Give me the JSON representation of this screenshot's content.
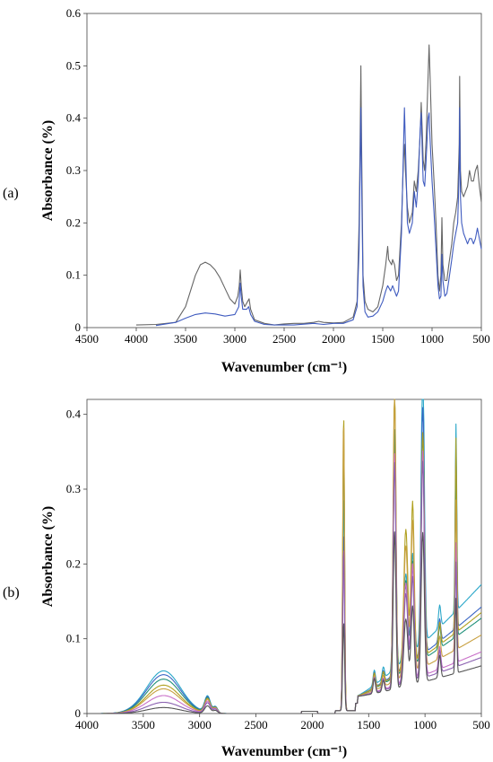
{
  "chart_data": [
    {
      "panel_label": "(a)",
      "type": "line",
      "xlabel": "Wavenumber (cm⁻¹)",
      "ylabel": "Absorbance (%)",
      "xlim": [
        4500,
        500
      ],
      "ylim": [
        0,
        0.6
      ],
      "x_ticks": [
        4500,
        4000,
        3500,
        3000,
        2500,
        2000,
        1500,
        1000,
        500
      ],
      "x_tick_labels": [
        "4500",
        "4000",
        "3500",
        "3000",
        "2500",
        "2000",
        "1500",
        "1000",
        "500"
      ],
      "y_ticks": [
        0,
        0.1,
        0.2,
        0.3,
        0.4,
        0.5,
        0.6
      ],
      "y_tick_labels": [
        "0",
        "0.1",
        "0.2",
        "0.3",
        "0.4",
        "0.5",
        "0.6"
      ],
      "grid": false,
      "series": [
        {
          "color": "#666666",
          "points": [
            [
              4000,
              0.005
            ],
            [
              3800,
              0.006
            ],
            [
              3600,
              0.01
            ],
            [
              3500,
              0.04
            ],
            [
              3450,
              0.07
            ],
            [
              3400,
              0.1
            ],
            [
              3350,
              0.12
            ],
            [
              3300,
              0.125
            ],
            [
              3250,
              0.12
            ],
            [
              3200,
              0.11
            ],
            [
              3150,
              0.095
            ],
            [
              3100,
              0.075
            ],
            [
              3050,
              0.055
            ],
            [
              3000,
              0.045
            ],
            [
              2970,
              0.06
            ],
            [
              2955,
              0.08
            ],
            [
              2945,
              0.11
            ],
            [
              2935,
              0.08
            ],
            [
              2920,
              0.05
            ],
            [
              2900,
              0.04
            ],
            [
              2870,
              0.05
            ],
            [
              2855,
              0.055
            ],
            [
              2840,
              0.035
            ],
            [
              2800,
              0.015
            ],
            [
              2700,
              0.008
            ],
            [
              2600,
              0.005
            ],
            [
              2500,
              0.007
            ],
            [
              2400,
              0.008
            ],
            [
              2300,
              0.008
            ],
            [
              2200,
              0.01
            ],
            [
              2150,
              0.012
            ],
            [
              2100,
              0.01
            ],
            [
              2000,
              0.009
            ],
            [
              1900,
              0.01
            ],
            [
              1800,
              0.02
            ],
            [
              1760,
              0.05
            ],
            [
              1740,
              0.2
            ],
            [
              1730,
              0.35
            ],
            [
              1722,
              0.5
            ],
            [
              1715,
              0.35
            ],
            [
              1700,
              0.1
            ],
            [
              1680,
              0.05
            ],
            [
              1650,
              0.035
            ],
            [
              1600,
              0.03
            ],
            [
              1550,
              0.04
            ],
            [
              1500,
              0.08
            ],
            [
              1470,
              0.12
            ],
            [
              1450,
              0.155
            ],
            [
              1440,
              0.13
            ],
            [
              1410,
              0.12
            ],
            [
              1400,
              0.13
            ],
            [
              1380,
              0.12
            ],
            [
              1360,
              0.09
            ],
            [
              1340,
              0.1
            ],
            [
              1310,
              0.2
            ],
            [
              1290,
              0.32
            ],
            [
              1280,
              0.35
            ],
            [
              1270,
              0.3
            ],
            [
              1250,
              0.23
            ],
            [
              1230,
              0.2
            ],
            [
              1200,
              0.22
            ],
            [
              1180,
              0.28
            ],
            [
              1160,
              0.26
            ],
            [
              1140,
              0.3
            ],
            [
              1120,
              0.37
            ],
            [
              1110,
              0.43
            ],
            [
              1100,
              0.38
            ],
            [
              1090,
              0.32
            ],
            [
              1075,
              0.3
            ],
            [
              1060,
              0.36
            ],
            [
              1040,
              0.48
            ],
            [
              1030,
              0.54
            ],
            [
              1020,
              0.48
            ],
            [
              1000,
              0.35
            ],
            [
              980,
              0.28
            ],
            [
              960,
              0.2
            ],
            [
              940,
              0.1
            ],
            [
              925,
              0.07
            ],
            [
              910,
              0.1
            ],
            [
              900,
              0.21
            ],
            [
              890,
              0.12
            ],
            [
              870,
              0.09
            ],
            [
              850,
              0.09
            ],
            [
              830,
              0.12
            ],
            [
              800,
              0.16
            ],
            [
              780,
              0.2
            ],
            [
              760,
              0.22
            ],
            [
              740,
              0.25
            ],
            [
              725,
              0.35
            ],
            [
              720,
              0.48
            ],
            [
              712,
              0.3
            ],
            [
              700,
              0.26
            ],
            [
              680,
              0.25
            ],
            [
              660,
              0.26
            ],
            [
              640,
              0.27
            ],
            [
              620,
              0.3
            ],
            [
              600,
              0.28
            ],
            [
              580,
              0.28
            ],
            [
              560,
              0.3
            ],
            [
              540,
              0.31
            ],
            [
              520,
              0.27
            ],
            [
              500,
              0.24
            ]
          ]
        },
        {
          "color": "#3f5bbf",
          "points": [
            [
              3800,
              0.004
            ],
            [
              3600,
              0.01
            ],
            [
              3500,
              0.018
            ],
            [
              3400,
              0.025
            ],
            [
              3300,
              0.028
            ],
            [
              3200,
              0.026
            ],
            [
              3100,
              0.022
            ],
            [
              3000,
              0.025
            ],
            [
              2960,
              0.04
            ],
            [
              2945,
              0.085
            ],
            [
              2935,
              0.06
            ],
            [
              2920,
              0.035
            ],
            [
              2880,
              0.035
            ],
            [
              2860,
              0.04
            ],
            [
              2840,
              0.025
            ],
            [
              2800,
              0.012
            ],
            [
              2700,
              0.006
            ],
            [
              2600,
              0.005
            ],
            [
              2500,
              0.005
            ],
            [
              2400,
              0.005
            ],
            [
              2200,
              0.008
            ],
            [
              2100,
              0.006
            ],
            [
              2000,
              0.008
            ],
            [
              1900,
              0.008
            ],
            [
              1800,
              0.015
            ],
            [
              1760,
              0.04
            ],
            [
              1740,
              0.15
            ],
            [
              1730,
              0.3
            ],
            [
              1722,
              0.42
            ],
            [
              1715,
              0.28
            ],
            [
              1700,
              0.08
            ],
            [
              1680,
              0.03
            ],
            [
              1650,
              0.02
            ],
            [
              1600,
              0.022
            ],
            [
              1550,
              0.03
            ],
            [
              1500,
              0.05
            ],
            [
              1470,
              0.07
            ],
            [
              1450,
              0.08
            ],
            [
              1420,
              0.07
            ],
            [
              1400,
              0.08
            ],
            [
              1380,
              0.07
            ],
            [
              1360,
              0.06
            ],
            [
              1340,
              0.07
            ],
            [
              1310,
              0.18
            ],
            [
              1290,
              0.34
            ],
            [
              1280,
              0.42
            ],
            [
              1270,
              0.35
            ],
            [
              1250,
              0.2
            ],
            [
              1230,
              0.18
            ],
            [
              1200,
              0.2
            ],
            [
              1180,
              0.26
            ],
            [
              1160,
              0.23
            ],
            [
              1140,
              0.28
            ],
            [
              1120,
              0.38
            ],
            [
              1110,
              0.41
            ],
            [
              1100,
              0.34
            ],
            [
              1090,
              0.28
            ],
            [
              1075,
              0.27
            ],
            [
              1060,
              0.32
            ],
            [
              1040,
              0.4
            ],
            [
              1030,
              0.41
            ],
            [
              1020,
              0.36
            ],
            [
              1000,
              0.28
            ],
            [
              980,
              0.22
            ],
            [
              960,
              0.15
            ],
            [
              940,
              0.08
            ],
            [
              925,
              0.055
            ],
            [
              910,
              0.06
            ],
            [
              900,
              0.14
            ],
            [
              890,
              0.09
            ],
            [
              870,
              0.06
            ],
            [
              850,
              0.065
            ],
            [
              830,
              0.09
            ],
            [
              800,
              0.13
            ],
            [
              780,
              0.16
            ],
            [
              760,
              0.18
            ],
            [
              740,
              0.2
            ],
            [
              725,
              0.3
            ],
            [
              720,
              0.42
            ],
            [
              712,
              0.25
            ],
            [
              700,
              0.2
            ],
            [
              680,
              0.18
            ],
            [
              660,
              0.17
            ],
            [
              640,
              0.16
            ],
            [
              620,
              0.17
            ],
            [
              600,
              0.17
            ],
            [
              580,
              0.16
            ],
            [
              560,
              0.17
            ],
            [
              540,
              0.19
            ],
            [
              520,
              0.17
            ],
            [
              500,
              0.15
            ]
          ]
        }
      ]
    },
    {
      "panel_label": "(b)",
      "type": "line",
      "xlabel": "Wavenumber (cm⁻¹)",
      "ylabel": "Absorbance (%)",
      "xlim": [
        4000,
        500
      ],
      "ylim": [
        0,
        0.42
      ],
      "x_ticks": [
        4000,
        3500,
        3000,
        2500,
        2000,
        1500,
        1000,
        500
      ],
      "x_tick_labels": [
        "4000",
        "3500",
        "3000",
        "2500",
        "2000",
        "1500",
        "1000",
        "500"
      ],
      "y_ticks": [
        0,
        0.1,
        0.2,
        0.3,
        0.4
      ],
      "y_tick_labels": [
        "0",
        "0.1",
        "0.2",
        "0.3",
        "0.4"
      ],
      "grid": false,
      "series": [
        {
          "color": "#2aa7c9",
          "h": 0.057,
          "c": 0.022,
          "p": [
            0.29,
            0.32,
            0.19,
            0.38,
            0.25
          ],
          "t": 0.23
        },
        {
          "color": "#3a66c4",
          "h": 0.052,
          "c": 0.021,
          "p": [
            0.24,
            0.3,
            0.18,
            0.33,
            0.24
          ],
          "t": 0.19
        },
        {
          "color": "#20907a",
          "h": 0.046,
          "c": 0.02,
          "p": [
            0.36,
            0.33,
            0.2,
            0.3,
            0.23
          ],
          "t": 0.17
        },
        {
          "color": "#b0a020",
          "h": 0.038,
          "c": 0.019,
          "p": [
            0.4,
            0.39,
            0.31,
            0.3,
            0.26
          ],
          "t": 0.18
        },
        {
          "color": "#c8a040",
          "h": 0.033,
          "c": 0.018,
          "p": [
            0.39,
            0.38,
            0.29,
            0.29,
            0.2
          ],
          "t": 0.14
        },
        {
          "color": "#c86fc8",
          "h": 0.024,
          "c": 0.016,
          "p": [
            0.22,
            0.31,
            0.22,
            0.3,
            0.16
          ],
          "t": 0.11
        },
        {
          "color": "#8a60b0",
          "h": 0.015,
          "c": 0.014,
          "p": [
            0.22,
            0.3,
            0.2,
            0.29,
            0.14
          ],
          "t": 0.1
        },
        {
          "color": "#555555",
          "h": 0.008,
          "c": 0.01,
          "p": [
            0.12,
            0.21,
            0.15,
            0.2,
            0.1
          ],
          "t": 0.085
        }
      ]
    }
  ]
}
